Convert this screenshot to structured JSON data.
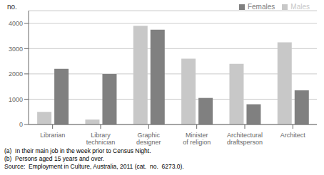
{
  "chart_data": {
    "type": "bar",
    "categories": [
      "Librarian",
      "Library\ntechnician",
      "Graphic\ndesigner",
      "Minister\nof religion",
      "Architectural\ndraftsperson",
      "Architect"
    ],
    "series": [
      {
        "name": "Males",
        "color": "#c8c8c8",
        "values": [
          500,
          200,
          3900,
          2600,
          2400,
          3250
        ]
      },
      {
        "name": "Females",
        "color": "#808080",
        "values": [
          2200,
          2000,
          3750,
          1050,
          800,
          1350
        ]
      }
    ],
    "ylabel": "no.",
    "ylim": [
      0,
      4500
    ],
    "yticks": [
      0,
      1000,
      2000,
      3000,
      4000
    ],
    "grid": true,
    "legend": "upper right",
    "annotations": [
      "(a)  In their main job in the week prior to Census Night.",
      "(b)  Persons aged 15 years and over.",
      "Source:  Employment in Culture, Australia, 2011 (cat.  no.  6273.0)."
    ]
  }
}
